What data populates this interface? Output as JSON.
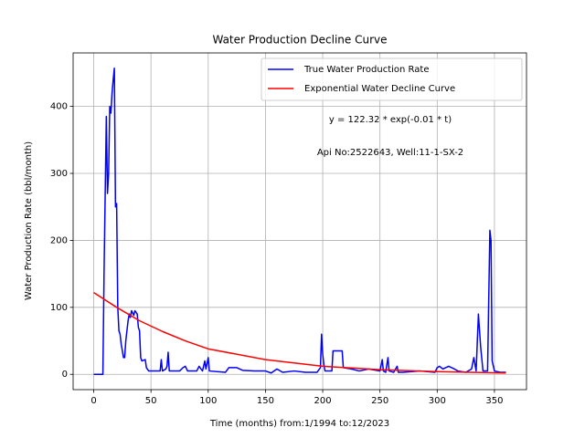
{
  "chart_data": {
    "type": "line",
    "title": "Water Production Decline Curve",
    "xlabel": "Time (months) from:1/1994 to:12/2023",
    "ylabel": "Water Production Rate (bbl/month)",
    "annotations": [
      "y = 122.32 * exp(-0.01 * t)",
      "Api No:2522643, Well:11-1-SX-2"
    ],
    "xlim": [
      -18,
      378
    ],
    "ylim": [
      -22.85,
      479.85
    ],
    "xticks": [
      0,
      50,
      100,
      150,
      200,
      250,
      300,
      350
    ],
    "yticks": [
      0,
      100,
      200,
      300,
      400
    ],
    "grid": true,
    "legend": "upper right",
    "series": [
      {
        "name": "True Water Production Rate",
        "color": "#0000ff",
        "x": [
          0,
          8,
          9,
          11,
          12,
          13,
          14,
          15,
          16,
          17,
          18,
          19,
          20,
          21,
          22,
          23,
          24,
          26,
          27,
          28,
          30,
          31,
          32,
          33,
          35,
          36,
          38,
          39,
          40,
          41,
          42,
          45,
          46,
          48,
          55,
          58,
          59,
          60,
          63,
          64,
          65,
          66,
          75,
          78,
          80,
          82,
          90,
          92,
          95,
          97,
          98,
          100,
          101,
          115,
          118,
          125,
          130,
          140,
          150,
          155,
          160,
          165,
          175,
          185,
          195,
          198,
          199,
          200,
          201,
          202,
          208,
          209,
          217,
          218,
          225,
          232,
          240,
          250,
          252,
          253,
          255,
          257,
          258,
          262,
          265,
          266,
          270,
          285,
          298,
          300,
          302,
          305,
          310,
          315,
          318,
          325,
          330,
          332,
          334,
          336,
          338,
          340,
          344,
          346,
          347,
          348,
          350,
          355,
          360
        ],
        "values": [
          0,
          0,
          150,
          385,
          270,
          300,
          400,
          390,
          420,
          440,
          457,
          250,
          255,
          100,
          65,
          60,
          45,
          25,
          25,
          50,
          80,
          90,
          85,
          95,
          88,
          95,
          90,
          70,
          65,
          25,
          20,
          22,
          10,
          5,
          5,
          5,
          22,
          5,
          8,
          12,
          33,
          5,
          5,
          10,
          12,
          5,
          5,
          12,
          5,
          20,
          8,
          25,
          5,
          3,
          10,
          10,
          6,
          5,
          5,
          2,
          8,
          3,
          5,
          3,
          3,
          10,
          60,
          30,
          15,
          5,
          5,
          35,
          35,
          10,
          8,
          5,
          8,
          5,
          22,
          5,
          3,
          25,
          5,
          3,
          12,
          3,
          3,
          5,
          3,
          10,
          12,
          8,
          12,
          8,
          5,
          3,
          8,
          25,
          5,
          90,
          40,
          5,
          5,
          215,
          200,
          20,
          5,
          3,
          3
        ]
      },
      {
        "name": "Exponential Water Decline Curve",
        "color": "#ff0000",
        "x": [
          0,
          20,
          40,
          60,
          80,
          100,
          150,
          200,
          250,
          300,
          360
        ],
        "values": [
          122,
          100,
          80,
          64,
          50,
          38,
          22,
          12,
          7,
          4,
          2
        ]
      }
    ]
  }
}
